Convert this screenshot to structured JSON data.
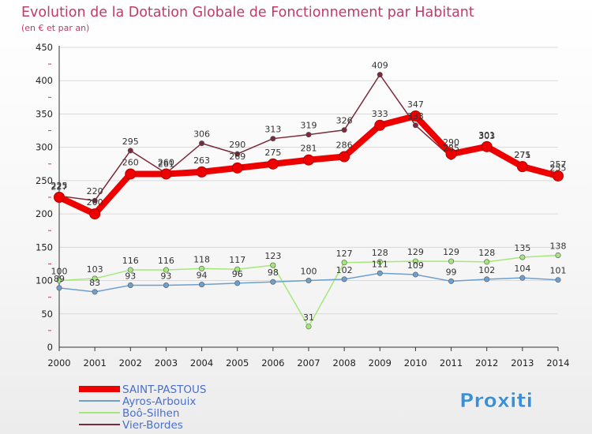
{
  "chart_data": {
    "type": "line",
    "title": "Evolution de la Dotation Globale de Fonctionnement par Habitant",
    "subtitle": "(en € et par an)",
    "categories": [
      "2000",
      "2001",
      "2002",
      "2003",
      "2004",
      "2005",
      "2006",
      "2007",
      "2008",
      "2009",
      "2010",
      "2011",
      "2012",
      "2013",
      "2014"
    ],
    "ylim": [
      0,
      450
    ],
    "yticks": [
      0,
      50,
      100,
      150,
      200,
      250,
      300,
      350,
      400,
      450
    ],
    "grid": "horizontal",
    "legend_position": "bottom-left",
    "series": [
      {
        "name": "SAINT-PASTOUS",
        "color": "#ee0000",
        "values": [
          225,
          200,
          260,
          260,
          263,
          269,
          275,
          281,
          286,
          333,
          347,
          290,
          301,
          271,
          257
        ]
      },
      {
        "name": "Ayros-Arbouix",
        "color": "#6f9fcd",
        "values": [
          89,
          83,
          93,
          93,
          94,
          96,
          98,
          100,
          102,
          111,
          109,
          99,
          102,
          104,
          101
        ]
      },
      {
        "name": "Boô-Silhen",
        "color": "#a5e87a",
        "values": [
          100,
          103,
          116,
          116,
          118,
          117,
          123,
          31,
          127,
          128,
          129,
          129,
          128,
          135,
          138
        ]
      },
      {
        "name": "Vier-Bordes",
        "color": "#7a2a3a",
        "values": [
          227,
          220,
          295,
          261,
          306,
          290,
          313,
          319,
          326,
          409,
          333,
          285,
          303,
          275,
          255
        ]
      }
    ]
  },
  "logo": {
    "text": "Proxiti",
    "letter_colors": [
      "#3a8fd8",
      "#f0a020",
      "#e84a3a",
      "#58b040",
      "#e8c020",
      "#3a8fd8",
      "#e84a3a"
    ]
  }
}
